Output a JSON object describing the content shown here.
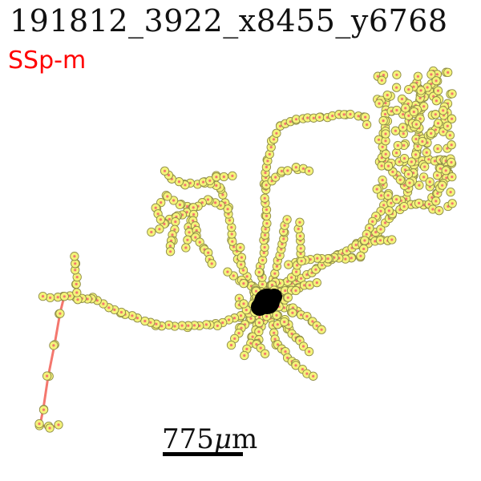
{
  "header": {
    "title": "191812_3922_x8455_y6768",
    "region": "SSp-m"
  },
  "scale": {
    "value": "775",
    "unit_mu": "μ",
    "unit_m": "m"
  },
  "colors": {
    "region_text": "#ff0000",
    "branch": "#f4776e",
    "node_fill": "#f4f37a",
    "node_stroke": "#8f8d48",
    "soma": "#000000"
  }
}
